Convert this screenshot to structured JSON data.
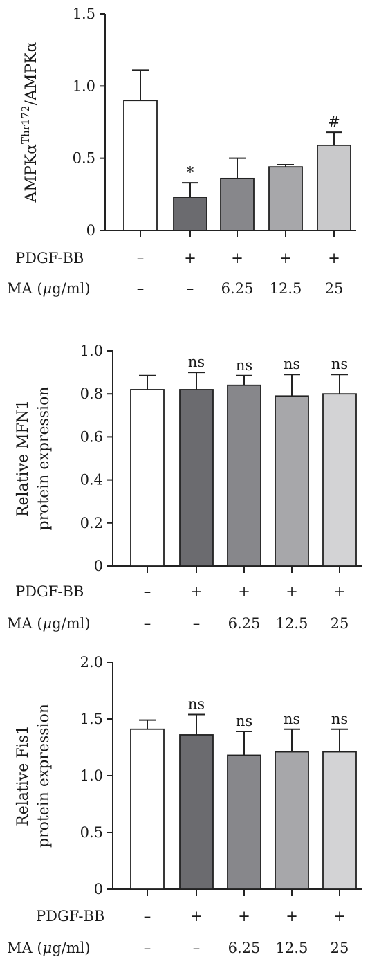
{
  "chart_data": [
    {
      "type": "bar",
      "ylabel_parts": [
        "AMPKα",
        "Thr172",
        "/AMPKα"
      ],
      "ylim": [
        0,
        1.5
      ],
      "yticks": [
        "0",
        "0.5",
        "1.0",
        "1.5"
      ],
      "ytick_values": [
        0,
        0.5,
        1.0,
        1.5
      ],
      "values": [
        0.9,
        0.23,
        0.36,
        0.44,
        0.59
      ],
      "errors": [
        0.21,
        0.1,
        0.14,
        0.015,
        0.09
      ],
      "annotations": [
        "",
        "*",
        "",
        "",
        "#"
      ],
      "fills": [
        "#ffffff",
        "#6b6b6f",
        "#87878b",
        "#a7a7aa",
        "#c9c9cb"
      ],
      "rows": [
        {
          "label": "PDGF-BB",
          "values": [
            "–",
            "+",
            "+",
            "+",
            "+"
          ]
        },
        {
          "label_pre": "MA (",
          "label_mu": "μ",
          "label_post": "g/ml)",
          "values": [
            "–",
            "–",
            "6.25",
            "12.5",
            "25"
          ]
        }
      ]
    },
    {
      "type": "bar",
      "ylabel_lines": [
        "Relative MFN1",
        "protein expression"
      ],
      "ylim": [
        0,
        1.0
      ],
      "yticks": [
        "0",
        "0.2",
        "0.4",
        "0.6",
        "0.8",
        "1.0"
      ],
      "ytick_values": [
        0,
        0.2,
        0.4,
        0.6,
        0.8,
        1.0
      ],
      "values": [
        0.82,
        0.82,
        0.84,
        0.79,
        0.8
      ],
      "errors": [
        0.065,
        0.08,
        0.045,
        0.1,
        0.09
      ],
      "annotations": [
        "",
        "ns",
        "ns",
        "ns",
        "ns"
      ],
      "fills": [
        "#ffffff",
        "#6b6b6f",
        "#87878b",
        "#a7a7aa",
        "#d3d3d5"
      ],
      "rows": [
        {
          "label": "PDGF-BB",
          "values": [
            "–",
            "+",
            "+",
            "+",
            "+"
          ]
        },
        {
          "label_pre": "MA (",
          "label_mu": "μ",
          "label_post": "g/ml)",
          "values": [
            "–",
            "–",
            "6.25",
            "12.5",
            "25"
          ]
        }
      ]
    },
    {
      "type": "bar",
      "ylabel_lines": [
        "Relative Fis1",
        "protein expression"
      ],
      "ylim": [
        0,
        2.0
      ],
      "yticks": [
        "0",
        "0.5",
        "1.0",
        "1.5",
        "2.0"
      ],
      "ytick_values": [
        0,
        0.5,
        1.0,
        1.5,
        2.0
      ],
      "values": [
        1.41,
        1.36,
        1.18,
        1.21,
        1.21
      ],
      "errors": [
        0.08,
        0.18,
        0.21,
        0.2,
        0.2
      ],
      "annotations": [
        "",
        "ns",
        "ns",
        "ns",
        "ns"
      ],
      "fills": [
        "#ffffff",
        "#6b6b6f",
        "#87878b",
        "#a7a7aa",
        "#d3d3d5"
      ],
      "rows": [
        {
          "label": "PDGF-BB",
          "values": [
            "–",
            "+",
            "+",
            "+",
            "+"
          ]
        },
        {
          "label_pre": "MA (",
          "label_mu": "μ",
          "label_post": "g/ml)",
          "values": [
            "–",
            "–",
            "6.25",
            "12.5",
            "25"
          ]
        }
      ]
    }
  ]
}
